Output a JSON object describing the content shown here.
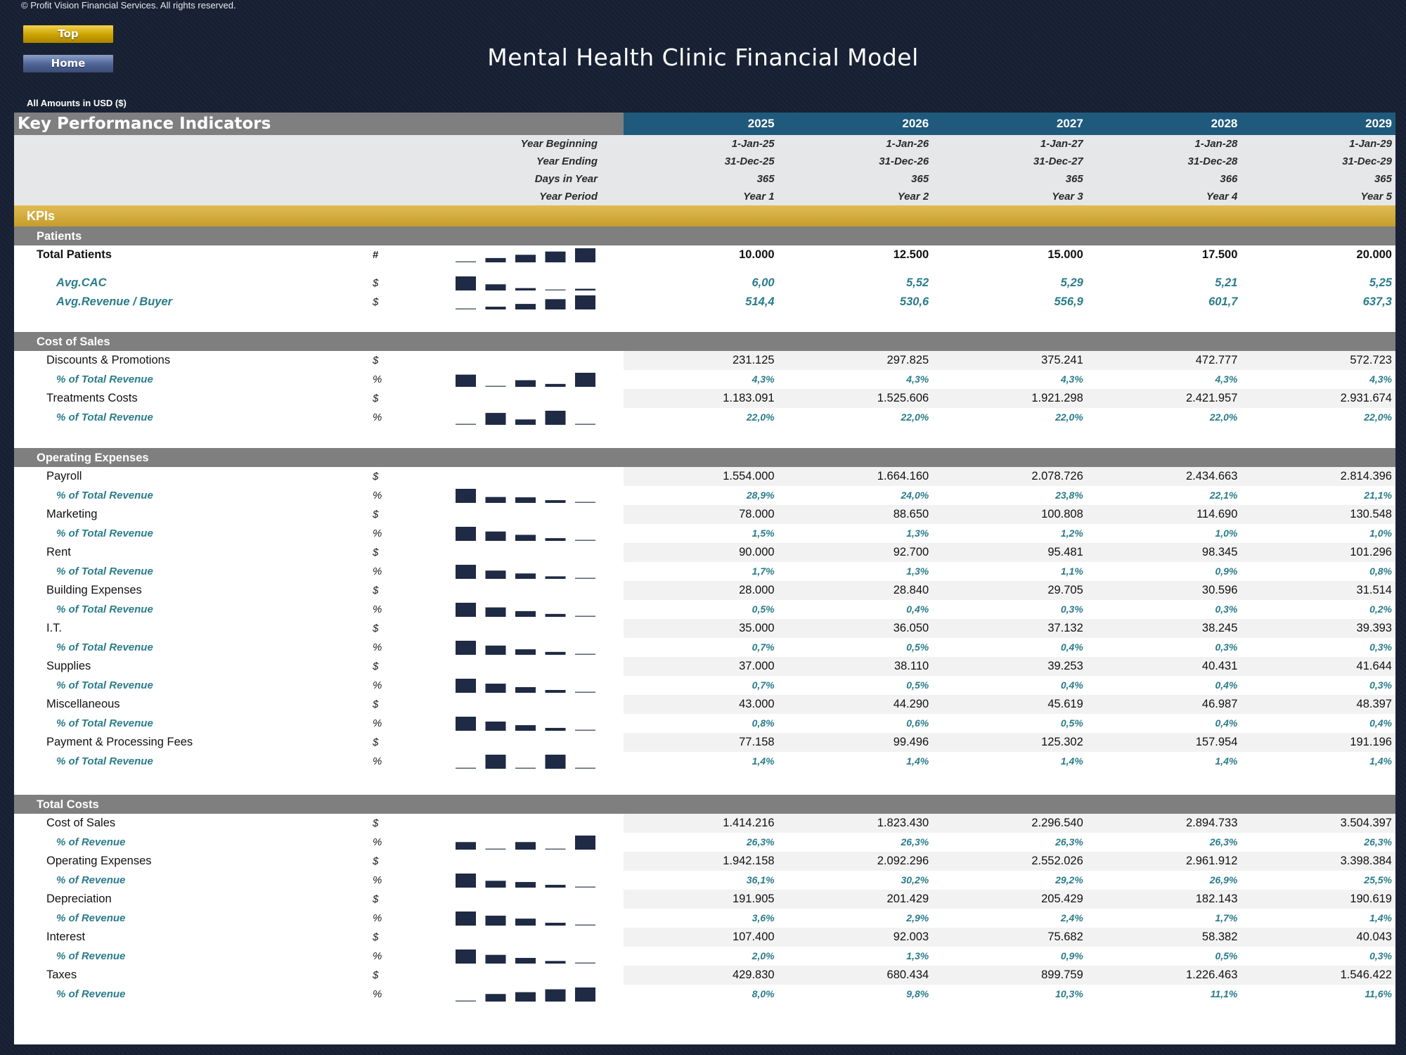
{
  "copyright": "© Profit Vision Financial Services. All rights reserved.",
  "nav": {
    "top_label": "Top",
    "home_label": "Home"
  },
  "title": "Mental Health Clinic Financial Model",
  "amounts_note": "All Amounts in  USD ($)",
  "header": {
    "section_title": "Key Performance Indicators",
    "years": [
      "2025",
      "2026",
      "2027",
      "2028",
      "2029"
    ],
    "meta": [
      {
        "label": "Year Beginning",
        "values": [
          "1-Jan-25",
          "1-Jan-26",
          "1-Jan-27",
          "1-Jan-28",
          "1-Jan-29"
        ]
      },
      {
        "label": "Year Ending",
        "values": [
          "31-Dec-25",
          "31-Dec-26",
          "31-Dec-27",
          "31-Dec-28",
          "31-Dec-29"
        ]
      },
      {
        "label": "Days in Year",
        "values": [
          "365",
          "365",
          "365",
          "366",
          "365"
        ]
      },
      {
        "label": "Year Period",
        "values": [
          "Year 1",
          "Year 2",
          "Year 3",
          "Year 4",
          "Year 5"
        ]
      }
    ]
  },
  "kpi_band": "KPIs",
  "colors": {
    "header_blue": "#1f5a7d",
    "gold": "#c69d2c",
    "section_gray": "#7f7f7f",
    "accent_teal": "#2a7c8a",
    "spark_bar": "#1f2a44"
  },
  "sections": [
    {
      "title": "Patients",
      "rows": [
        {
          "label": "Total Patients",
          "unit": "#",
          "style": "l0",
          "values": [
            "10.000",
            "12.500",
            "15.000",
            "17.500",
            "20.000"
          ],
          "spark": [
            10000,
            12500,
            15000,
            17500,
            20000
          ]
        },
        {
          "label": "Avg.CAC",
          "unit": "$",
          "style": "kpi",
          "values": [
            "6,00",
            "5,52",
            "5,29",
            "5,21",
            "5,25"
          ],
          "spark": [
            6.0,
            5.52,
            5.29,
            5.21,
            5.25
          ]
        },
        {
          "label": "Avg.Revenue / Buyer",
          "unit": "$",
          "style": "kpi",
          "values": [
            "514,4",
            "530,6",
            "556,9",
            "601,7",
            "637,3"
          ],
          "spark": [
            514.4,
            530.6,
            556.9,
            601.7,
            637.3
          ]
        }
      ]
    },
    {
      "title": "Cost of Sales",
      "rows": [
        {
          "label": "Discounts & Promotions",
          "unit": "$",
          "style": "l1",
          "values": [
            "231.125",
            "297.825",
            "375.241",
            "472.777",
            "572.723"
          ]
        },
        {
          "label": "% of Total Revenue",
          "unit": "%",
          "style": "l2",
          "values": [
            "4,3%",
            "4,3%",
            "4,3%",
            "4,3%",
            "4,3%"
          ],
          "spark": [
            4.34,
            4.28,
            4.31,
            4.29,
            4.35
          ]
        },
        {
          "label": "Treatments Costs",
          "unit": "$",
          "style": "l1",
          "values": [
            "1.183.091",
            "1.525.606",
            "1.921.298",
            "2.421.957",
            "2.931.674"
          ]
        },
        {
          "label": "% of Total Revenue",
          "unit": "%",
          "style": "l2",
          "values": [
            "22,0%",
            "22,0%",
            "22,0%",
            "22,0%",
            "22,0%"
          ],
          "spark": [
            21.98,
            22.03,
            22.0,
            22.04,
            21.98
          ]
        }
      ]
    },
    {
      "title": "Operating Expenses",
      "rows": [
        {
          "label": "Payroll",
          "unit": "$",
          "style": "l1",
          "values": [
            "1.554.000",
            "1.664.160",
            "2.078.726",
            "2.434.663",
            "2.814.396"
          ]
        },
        {
          "label": "% of Total Revenue",
          "unit": "%",
          "style": "l2",
          "values": [
            "28,9%",
            "24,0%",
            "23,8%",
            "22,1%",
            "21,1%"
          ],
          "spark": [
            28.9,
            24.0,
            23.8,
            22.1,
            21.1
          ]
        },
        {
          "label": "Marketing",
          "unit": "$",
          "style": "l1",
          "values": [
            "78.000",
            "88.650",
            "100.808",
            "114.690",
            "130.548"
          ]
        },
        {
          "label": "% of Total Revenue",
          "unit": "%",
          "style": "l2",
          "values": [
            "1,5%",
            "1,3%",
            "1,2%",
            "1,0%",
            "1,0%"
          ],
          "spark": [
            1.45,
            1.28,
            1.16,
            1.04,
            0.98
          ]
        },
        {
          "label": "Rent",
          "unit": "$",
          "style": "l1",
          "values": [
            "90.000",
            "92.700",
            "95.481",
            "98.345",
            "101.296"
          ]
        },
        {
          "label": "% of Total Revenue",
          "unit": "%",
          "style": "l2",
          "values": [
            "1,7%",
            "1,3%",
            "1,1%",
            "0,9%",
            "0,8%"
          ],
          "spark": [
            1.7,
            1.3,
            1.1,
            0.9,
            0.8
          ]
        },
        {
          "label": "Building Expenses",
          "unit": "$",
          "style": "l1",
          "values": [
            "28.000",
            "28.840",
            "29.705",
            "30.596",
            "31.514"
          ]
        },
        {
          "label": "% of Total Revenue",
          "unit": "%",
          "style": "l2",
          "values": [
            "0,5%",
            "0,4%",
            "0,3%",
            "0,3%",
            "0,2%"
          ],
          "spark": [
            0.52,
            0.42,
            0.34,
            0.28,
            0.24
          ]
        },
        {
          "label": "I.T.",
          "unit": "$",
          "style": "l1",
          "values": [
            "35.000",
            "36.050",
            "37.132",
            "38.245",
            "39.393"
          ]
        },
        {
          "label": "% of Total Revenue",
          "unit": "%",
          "style": "l2",
          "values": [
            "0,7%",
            "0,5%",
            "0,4%",
            "0,3%",
            "0,3%"
          ],
          "spark": [
            0.65,
            0.52,
            0.42,
            0.35,
            0.3
          ]
        },
        {
          "label": "Supplies",
          "unit": "$",
          "style": "l1",
          "values": [
            "37.000",
            "38.110",
            "39.253",
            "40.431",
            "41.644"
          ]
        },
        {
          "label": "% of Total Revenue",
          "unit": "%",
          "style": "l2",
          "values": [
            "0,7%",
            "0,5%",
            "0,4%",
            "0,4%",
            "0,3%"
          ],
          "spark": [
            0.69,
            0.55,
            0.45,
            0.37,
            0.32
          ]
        },
        {
          "label": "Miscellaneous",
          "unit": "$",
          "style": "l1",
          "values": [
            "43.000",
            "44.290",
            "45.619",
            "46.987",
            "48.397"
          ]
        },
        {
          "label": "% of Total Revenue",
          "unit": "%",
          "style": "l2",
          "values": [
            "0,8%",
            "0,6%",
            "0,5%",
            "0,4%",
            "0,4%"
          ],
          "spark": [
            0.8,
            0.64,
            0.52,
            0.43,
            0.37
          ]
        },
        {
          "label": "Payment & Processing Fees",
          "unit": "$",
          "style": "l1",
          "values": [
            "77.158",
            "99.496",
            "125.302",
            "157.954",
            "191.196"
          ]
        },
        {
          "label": "% of Total Revenue",
          "unit": "%",
          "style": "l2",
          "values": [
            "1,4%",
            "1,4%",
            "1,4%",
            "1,4%",
            "1,4%"
          ],
          "spark": [
            1.43,
            1.44,
            1.43,
            1.44,
            1.43
          ]
        }
      ]
    },
    {
      "title": "Total Costs",
      "rows": [
        {
          "label": "Cost of Sales",
          "unit": "$",
          "style": "l1",
          "values": [
            "1.414.216",
            "1.823.430",
            "2.296.540",
            "2.894.733",
            "3.504.397"
          ]
        },
        {
          "label": "% of Revenue",
          "unit": "%",
          "style": "l2",
          "values": [
            "26,3%",
            "26,3%",
            "26,3%",
            "26,3%",
            "26,3%"
          ],
          "spark": [
            26.32,
            26.31,
            26.32,
            26.31,
            26.33
          ]
        },
        {
          "label": "Operating Expenses",
          "unit": "$",
          "style": "l1",
          "values": [
            "1.942.158",
            "2.092.296",
            "2.552.026",
            "2.961.912",
            "3.398.384"
          ]
        },
        {
          "label": "% of Revenue",
          "unit": "%",
          "style": "l2",
          "values": [
            "36,1%",
            "30,2%",
            "29,2%",
            "26,9%",
            "25,5%"
          ],
          "spark": [
            36.1,
            30.2,
            29.2,
            26.9,
            25.5
          ]
        },
        {
          "label": "Depreciation",
          "unit": "$",
          "style": "l1",
          "values": [
            "191.905",
            "201.429",
            "205.429",
            "182.143",
            "190.619"
          ]
        },
        {
          "label": "% of Revenue",
          "unit": "%",
          "style": "l2",
          "values": [
            "3,6%",
            "2,9%",
            "2,4%",
            "1,7%",
            "1,4%"
          ],
          "spark": [
            3.6,
            2.9,
            2.4,
            1.7,
            1.4
          ]
        },
        {
          "label": "Interest",
          "unit": "$",
          "style": "l1",
          "values": [
            "107.400",
            "92.003",
            "75.682",
            "58.382",
            "40.043"
          ]
        },
        {
          "label": "% of Revenue",
          "unit": "%",
          "style": "l2",
          "values": [
            "2,0%",
            "1,3%",
            "0,9%",
            "0,5%",
            "0,3%"
          ],
          "spark": [
            2.0,
            1.3,
            0.9,
            0.5,
            0.3
          ]
        },
        {
          "label": "Taxes",
          "unit": "$",
          "style": "l1",
          "values": [
            "429.830",
            "680.434",
            "899.759",
            "1.226.463",
            "1.546.422"
          ]
        },
        {
          "label": "% of Revenue",
          "unit": "%",
          "style": "l2",
          "values": [
            "8,0%",
            "9,8%",
            "10,3%",
            "11,1%",
            "11,6%"
          ],
          "spark": [
            8.0,
            9.8,
            10.3,
            11.1,
            11.6
          ]
        }
      ]
    }
  ]
}
